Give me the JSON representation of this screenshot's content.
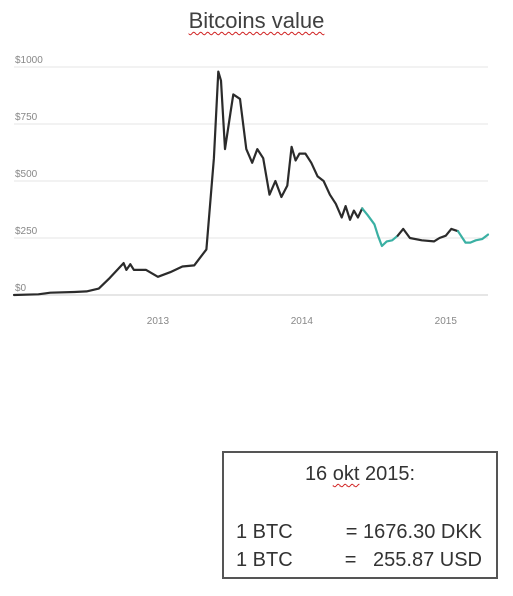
{
  "chart_data": {
    "type": "line",
    "title": "Bitcoins value",
    "xlabel": "",
    "ylabel": "",
    "x_ticks": [
      "2013",
      "2014",
      "2015"
    ],
    "y_ticks": [
      "$0",
      "$250",
      "$500",
      "$750",
      "$1000"
    ],
    "ylim": [
      0,
      1000
    ],
    "xlim": [
      "2012-07",
      "2015-10-16"
    ],
    "grid": true,
    "series": [
      {
        "color": "#2b2b2b",
        "points": [
          [
            "2012-07",
            0
          ],
          [
            "2012-09",
            3
          ],
          [
            "2012-10",
            10
          ],
          [
            "2012-12",
            13
          ],
          [
            "2013-01",
            16
          ],
          [
            "2013-02",
            28
          ],
          [
            "2013-03",
            75
          ],
          [
            "2013-04-05",
            140
          ],
          [
            "2013-04-12",
            110
          ],
          [
            "2013-04-22",
            135
          ],
          [
            "2013-05",
            110
          ],
          [
            "2013-06",
            110
          ],
          [
            "2013-07",
            80
          ],
          [
            "2013-08",
            100
          ],
          [
            "2013-09",
            125
          ],
          [
            "2013-10",
            130
          ],
          [
            "2013-11",
            200
          ],
          [
            "2013-11-20",
            600
          ],
          [
            "2013-12-01",
            980
          ],
          [
            "2013-12-08",
            940
          ],
          [
            "2013-12-18",
            640
          ],
          [
            "2014-01-01",
            800
          ],
          [
            "2014-01-08",
            880
          ],
          [
            "2014-01-25",
            860
          ],
          [
            "2014-02-10",
            640
          ],
          [
            "2014-02-25",
            580
          ],
          [
            "2014-03-10",
            640
          ],
          [
            "2014-03-25",
            600
          ],
          [
            "2014-04-10",
            440
          ],
          [
            "2014-04-25",
            500
          ],
          [
            "2014-05-10",
            430
          ],
          [
            "2014-05-25",
            480
          ],
          [
            "2014-06-05",
            650
          ],
          [
            "2014-06-15",
            590
          ],
          [
            "2014-06-25",
            620
          ],
          [
            "2014-07-10",
            620
          ],
          [
            "2014-07-25",
            580
          ],
          [
            "2014-08-10",
            520
          ],
          [
            "2014-08-25",
            500
          ],
          [
            "2014-09-10",
            440
          ],
          [
            "2014-09-25",
            400
          ],
          [
            "2014-10-10",
            340
          ],
          [
            "2014-10-20",
            390
          ],
          [
            "2014-10-31",
            330
          ],
          [
            "2014-11-10",
            370
          ],
          [
            "2014-11-20",
            340
          ],
          [
            "2014-12-01",
            380
          ]
        ]
      },
      {
        "color": "#3ab0a3",
        "points": [
          [
            "2014-12-01",
            380
          ],
          [
            "2014-12-15",
            350
          ],
          [
            "2015-01-01",
            310
          ],
          [
            "2015-01-10",
            260
          ],
          [
            "2015-01-20",
            215
          ],
          [
            "2015-02-01",
            235
          ],
          [
            "2015-02-15",
            240
          ],
          [
            "2015-03-01",
            260
          ]
        ]
      },
      {
        "color": "#2b2b2b",
        "points": [
          [
            "2015-03-01",
            260
          ],
          [
            "2015-03-15",
            290
          ],
          [
            "2015-04-01",
            250
          ],
          [
            "2015-05-01",
            240
          ],
          [
            "2015-06-01",
            235
          ],
          [
            "2015-06-15",
            250
          ],
          [
            "2015-07-01",
            260
          ],
          [
            "2015-07-15",
            290
          ],
          [
            "2015-08-01",
            280
          ]
        ]
      },
      {
        "color": "#3ab0a3",
        "points": [
          [
            "2015-08-01",
            280
          ],
          [
            "2015-08-20",
            230
          ],
          [
            "2015-09-01",
            230
          ],
          [
            "2015-09-15",
            240
          ],
          [
            "2015-10-01",
            245
          ],
          [
            "2015-10-16",
            265
          ]
        ]
      }
    ]
  },
  "info_box": {
    "date_day": "16",
    "date_month": "okt",
    "date_year": "2015:",
    "rates": [
      {
        "label": "1 BTC",
        "value": "= 1676.30 DKK"
      },
      {
        "label": "1 BTC",
        "value": "=   255.87 USD"
      }
    ]
  },
  "colors": {
    "grid": "#e4e4e4",
    "axis": "#cccccc",
    "line_dark": "#2b2b2b",
    "line_teal": "#3ab0a3"
  }
}
